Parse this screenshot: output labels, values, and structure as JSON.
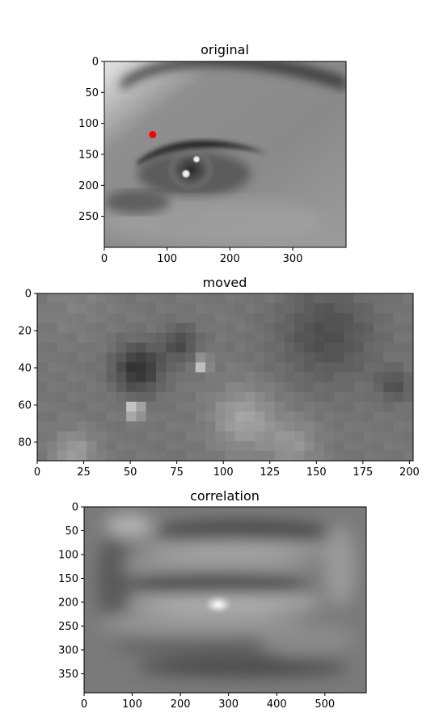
{
  "chart_data": [
    {
      "type": "heatmap",
      "title": "original",
      "description_of_image": "grayscale close-up of an eye",
      "x_range": [
        0,
        385
      ],
      "y_range": [
        0,
        300
      ],
      "y_inverted": true,
      "xticks": [
        0,
        100,
        200,
        300
      ],
      "yticks": [
        0,
        50,
        100,
        150,
        200,
        250
      ],
      "marker": {
        "x": 77,
        "y": 118,
        "color": "#ff0000"
      },
      "grid": false
    },
    {
      "type": "heatmap",
      "title": "moved",
      "description_of_image": "pixelated crop of the eye region",
      "x_range": [
        0,
        202
      ],
      "y_range": [
        0,
        90
      ],
      "y_inverted": true,
      "xticks": [
        0,
        25,
        50,
        75,
        100,
        125,
        150,
        175,
        200
      ],
      "yticks": [
        0,
        20,
        40,
        60,
        80
      ],
      "grid": false
    },
    {
      "type": "heatmap",
      "title": "correlation",
      "description_of_image": "blurred cross-correlation map with bright peak",
      "x_range": [
        0,
        586
      ],
      "y_range": [
        0,
        390
      ],
      "y_inverted": true,
      "xticks": [
        0,
        100,
        200,
        300,
        400,
        500
      ],
      "yticks": [
        0,
        50,
        100,
        150,
        200,
        250,
        300,
        350
      ],
      "peak": {
        "x": 280,
        "y": 205
      },
      "grid": false
    }
  ]
}
